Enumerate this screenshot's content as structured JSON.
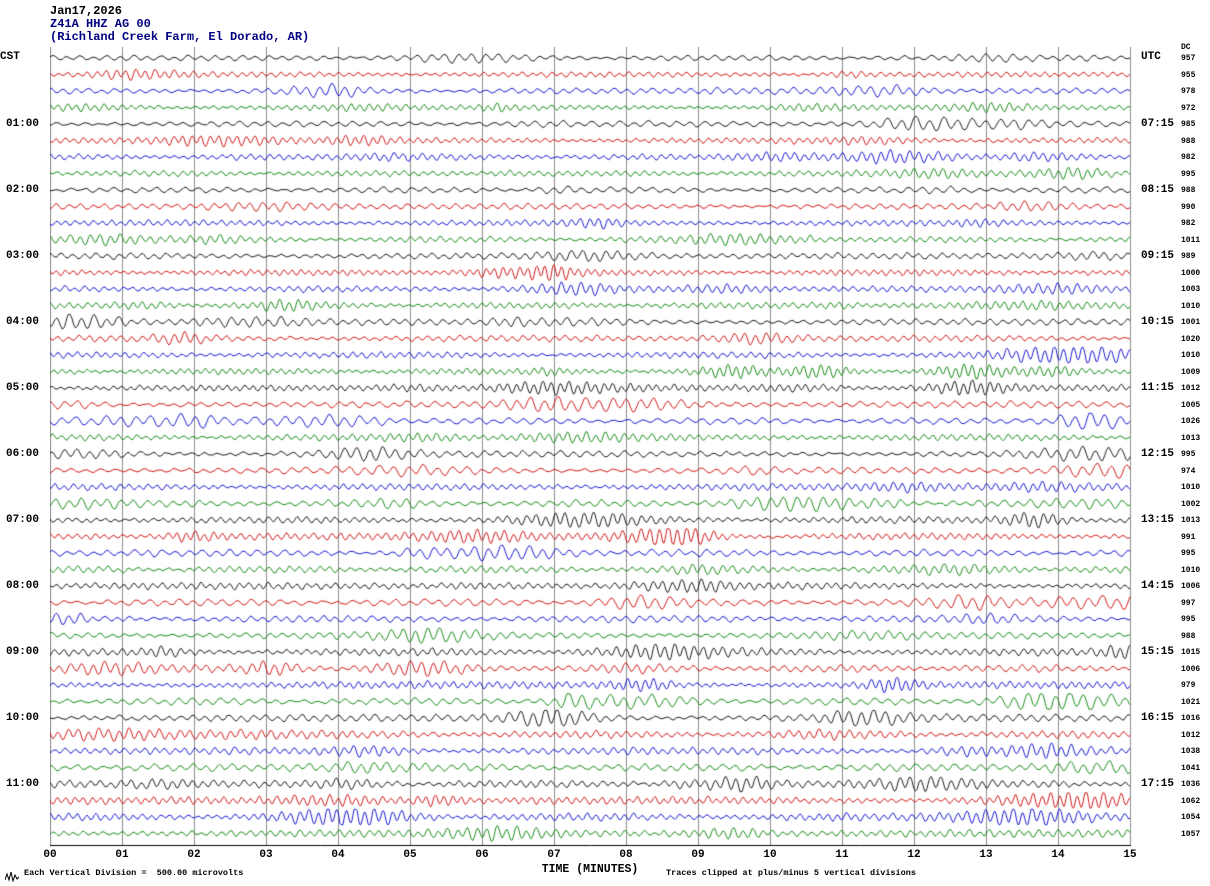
{
  "header": {
    "date": "Jan17,2026",
    "station": "Z41A HHZ AG 00",
    "location": "(Richland Creek Farm, El Dorado, AR)"
  },
  "axes": {
    "left_label": "CST",
    "right_label": "UTC",
    "dc_header": "DC",
    "x_ticks": [
      "00",
      "01",
      "02",
      "03",
      "04",
      "05",
      "06",
      "07",
      "08",
      "09",
      "10",
      "11",
      "12",
      "13",
      "14",
      "15"
    ],
    "x_title": "TIME (MINUTES)"
  },
  "footer": {
    "left": "Each Vertical Division =  500.00 microvolts",
    "right": "Traces clipped at plus/minus 5 vertical divisions"
  },
  "colors": {
    "header_accent": "#000080",
    "grid": "#8c8c8c",
    "axis": "#000000"
  },
  "chart_data": {
    "type": "line",
    "subtype": "helicorder-seismogram",
    "title": "Z41A HHZ AG 00 (Richland Creek Farm, El Dorado, AR) Jan17,2026",
    "xlabel": "TIME (MINUTES)",
    "x_range_minutes": [
      0,
      15
    ],
    "rows": 48,
    "minutes_per_row": 15,
    "first_row_start_cst": "00:00",
    "row_color_cycle": [
      "#000000",
      "#cc0000",
      "#0000cc",
      "#008000"
    ],
    "hour_labels_cst": [
      "01:00",
      "02:00",
      "03:00",
      "04:00",
      "05:00",
      "06:00",
      "07:00",
      "08:00",
      "09:00",
      "10:00",
      "11:00"
    ],
    "hour_labels_utc": [
      "07:15",
      "08:15",
      "09:15",
      "10:15",
      "11:15",
      "12:15",
      "13:15",
      "14:15",
      "15:15",
      "16:15",
      "17:15"
    ],
    "dc_offsets_per_row": [
      957,
      955,
      978,
      972,
      985,
      988,
      982,
      995,
      988,
      990,
      982,
      1011,
      989,
      1000,
      1003,
      1010,
      1001,
      1020,
      1010,
      1009,
      1012,
      1005,
      1026,
      1013,
      995,
      974,
      1010,
      1002,
      1013,
      991,
      995,
      1010,
      1006,
      997,
      995,
      988,
      1015,
      1006,
      979,
      1021,
      1016,
      1012,
      1038,
      1041,
      1036,
      1062,
      1054,
      1057
    ],
    "vertical_division_microvolts": 500.0,
    "clip_divisions": 5,
    "grid": "vertical lines every 1 minute",
    "note": "Traces are continuous ambient seismic noise; individual sample values are not readable from the image and are synthesized for display."
  }
}
